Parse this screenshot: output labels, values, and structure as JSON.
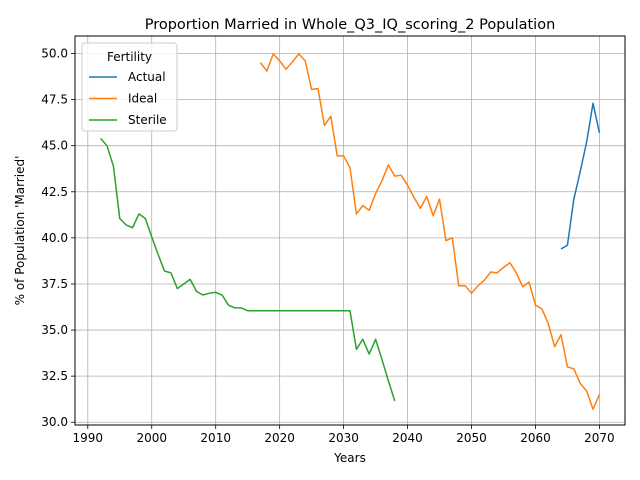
{
  "chart_data": {
    "type": "line",
    "title": "Proportion Married in Whole_Q3_IQ_scoring_2 Population",
    "xlabel": "Years",
    "ylabel": "% of Population 'Married'",
    "xlim": [
      1988.0,
      2074.0
    ],
    "ylim": [
      29.85,
      50.95
    ],
    "xticks": [
      1990,
      2000,
      2010,
      2020,
      2030,
      2040,
      2050,
      2060,
      2070
    ],
    "yticks": [
      30.0,
      32.5,
      35.0,
      37.5,
      40.0,
      42.5,
      45.0,
      47.5,
      50.0
    ],
    "grid": true,
    "legend": {
      "title": "Fertility",
      "position": "top-left"
    },
    "series": [
      {
        "name": "Actual",
        "color": "#1f77b4",
        "x": [
          2064,
          2065,
          2066,
          2067,
          2068,
          2069,
          2070
        ],
        "y": [
          39.4,
          39.6,
          42.1,
          43.6,
          45.2,
          47.3,
          45.7
        ]
      },
      {
        "name": "Ideal",
        "color": "#ff7f0e",
        "x": [
          2017,
          2018,
          2019,
          2020,
          2021,
          2022,
          2023,
          2024,
          2025,
          2026,
          2027,
          2028,
          2029,
          2030,
          2031,
          2032,
          2033,
          2034,
          2035,
          2036,
          2037,
          2038,
          2039,
          2040,
          2041,
          2042,
          2043,
          2044,
          2045,
          2046,
          2047,
          2048,
          2049,
          2050,
          2051,
          2052,
          2053,
          2054,
          2055,
          2056,
          2057,
          2058,
          2059,
          2060,
          2061,
          2062,
          2063,
          2064,
          2065,
          2066,
          2067,
          2068,
          2069,
          2070
        ],
        "y": [
          49.5,
          49.05,
          49.98,
          49.6,
          49.15,
          49.55,
          49.98,
          49.6,
          48.05,
          48.1,
          46.1,
          46.6,
          44.45,
          44.45,
          43.8,
          41.3,
          41.75,
          41.5,
          42.4,
          43.1,
          43.95,
          43.35,
          43.4,
          42.85,
          42.2,
          41.6,
          42.25,
          41.2,
          42.1,
          39.85,
          40.0,
          37.4,
          37.4,
          37.0,
          37.4,
          37.7,
          38.15,
          38.1,
          38.4,
          38.65,
          38.1,
          37.35,
          37.6,
          36.35,
          36.15,
          35.35,
          34.1,
          34.75,
          33.0,
          32.9,
          32.1,
          31.7,
          30.7,
          31.5
        ]
      },
      {
        "name": "Sterile",
        "color": "#2ca02c",
        "x": [
          1992,
          1993,
          1994,
          1995,
          1996,
          1997,
          1998,
          1999,
          2000,
          2001,
          2002,
          2003,
          2004,
          2005,
          2006,
          2007,
          2008,
          2009,
          2010,
          2011,
          2012,
          2013,
          2014,
          2015,
          2016,
          2017,
          2018,
          2019,
          2020,
          2021,
          2022,
          2023,
          2024,
          2025,
          2026,
          2027,
          2028,
          2029,
          2030,
          2031,
          2032,
          2033,
          2034,
          2035,
          2036,
          2037,
          2038
        ],
        "y": [
          45.4,
          45.0,
          43.9,
          41.05,
          40.7,
          40.55,
          41.3,
          41.05,
          40.05,
          39.1,
          38.2,
          38.1,
          37.25,
          37.5,
          37.75,
          37.1,
          36.9,
          37.0,
          37.05,
          36.9,
          36.35,
          36.2,
          36.2,
          36.05,
          36.05,
          36.05,
          36.05,
          36.05,
          36.05,
          36.05,
          36.05,
          36.05,
          36.05,
          36.05,
          36.05,
          36.05,
          36.05,
          36.05,
          36.05,
          36.05,
          33.95,
          34.5,
          33.7,
          34.5,
          33.4,
          32.25,
          31.15
        ]
      }
    ]
  }
}
